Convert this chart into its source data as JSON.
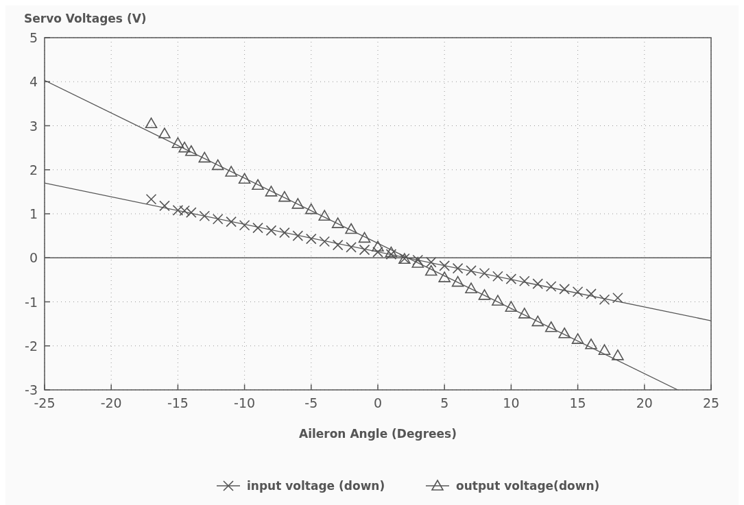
{
  "chart_data": {
    "type": "scatter",
    "xlabel": "Aileron Angle (Degrees)",
    "ylabel": "Servo Voltages (V)",
    "xlim": [
      -25,
      25
    ],
    "xticks": [
      -25,
      -20,
      -15,
      -10,
      -5,
      0,
      5,
      10,
      15,
      20,
      25
    ],
    "ylim": [
      -3,
      5
    ],
    "yticks": [
      -3,
      -2,
      -1,
      0,
      1,
      2,
      3,
      4,
      5
    ],
    "grid": true,
    "legend": "bottom",
    "ref_lines": [
      {
        "axis": "y",
        "value": 0,
        "color": "#555555"
      }
    ],
    "series": [
      {
        "name": "input voltage (down)",
        "color": "#555555",
        "marker": "cross",
        "x": [
          -17,
          -16,
          -15,
          -14.5,
          -14,
          -13,
          -12,
          -11,
          -10,
          -9,
          -8,
          -7,
          -6,
          -5,
          -4,
          -3,
          -2,
          -1,
          0,
          1,
          2,
          3,
          4,
          5,
          6,
          7,
          8,
          9,
          10,
          11,
          12,
          13,
          14,
          15,
          16,
          17,
          18
        ],
        "values": [
          1.33,
          1.18,
          1.08,
          1.07,
          1.03,
          0.95,
          0.88,
          0.82,
          0.74,
          0.68,
          0.62,
          0.57,
          0.5,
          0.43,
          0.37,
          0.29,
          0.24,
          0.18,
          0.13,
          0.08,
          -0.02,
          -0.05,
          -0.1,
          -0.18,
          -0.24,
          -0.29,
          -0.35,
          -0.42,
          -0.48,
          -0.53,
          -0.59,
          -0.65,
          -0.71,
          -0.77,
          -0.82,
          -0.95,
          -0.91
        ]
      },
      {
        "name": "output voltage(down)",
        "color": "#555555",
        "marker": "triangle",
        "x": [
          -17,
          -16,
          -15,
          -14.5,
          -14,
          -13,
          -12,
          -11,
          -10,
          -9,
          -8,
          -7,
          -6,
          -5,
          -4,
          -3,
          -2,
          -1,
          0,
          1,
          2,
          3,
          4,
          5,
          6,
          7,
          8,
          9,
          10,
          11,
          12,
          13,
          14,
          15,
          16,
          17,
          18
        ],
        "values": [
          3.05,
          2.82,
          2.6,
          2.5,
          2.42,
          2.27,
          2.1,
          1.95,
          1.79,
          1.65,
          1.5,
          1.38,
          1.22,
          1.1,
          0.95,
          0.78,
          0.65,
          0.45,
          0.25,
          0.12,
          -0.03,
          -0.12,
          -0.3,
          -0.45,
          -0.55,
          -0.7,
          -0.85,
          -0.98,
          -1.12,
          -1.27,
          -1.45,
          -1.58,
          -1.72,
          -1.85,
          -1.97,
          -2.1,
          -2.22
        ]
      },
      {
        "type": "line",
        "color": "#555555",
        "x": [
          -25,
          25
        ],
        "values": [
          1.7,
          -1.43
        ]
      },
      {
        "type": "line",
        "color": "#555555",
        "x": [
          -25,
          22.5
        ],
        "values": [
          4.03,
          -3
        ]
      }
    ]
  }
}
